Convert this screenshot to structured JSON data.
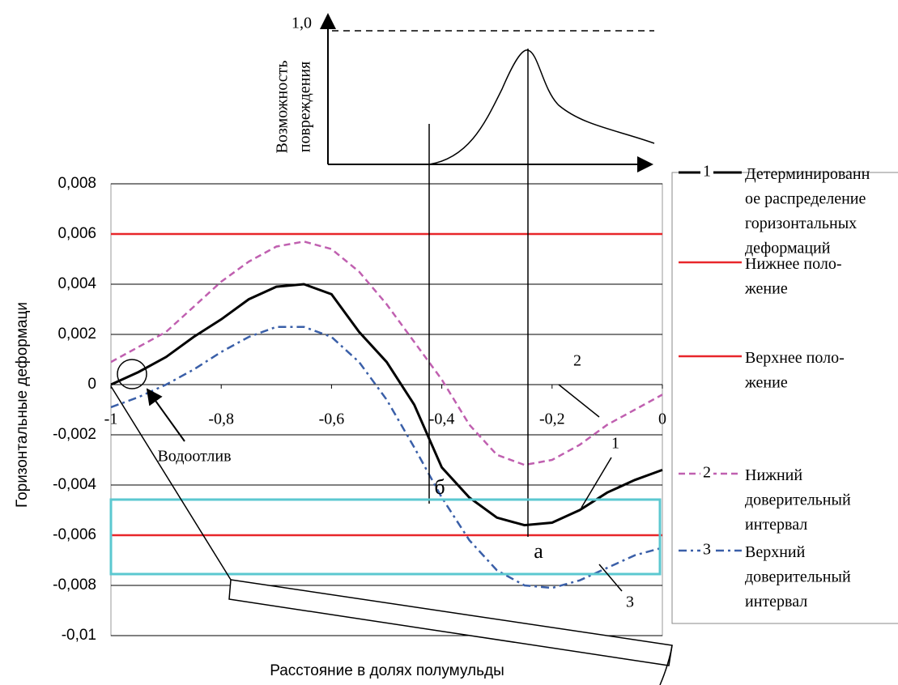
{
  "chart_data": {
    "type": "line",
    "x_label": "Расстояние в долях полумульды",
    "y_label": "Горизонтальные деформаци",
    "x": [
      -1,
      -0.95,
      -0.9,
      -0.85,
      -0.8,
      -0.75,
      -0.7,
      -0.65,
      -0.6,
      -0.55,
      -0.5,
      -0.45,
      -0.4,
      -0.35,
      -0.3,
      -0.25,
      -0.2,
      -0.15,
      -0.1,
      -0.05,
      0
    ],
    "xlim": [
      -1,
      0
    ],
    "xticks": [
      {
        "value": -1,
        "label": "-1"
      },
      {
        "value": -0.8,
        "label": "-0,8"
      },
      {
        "value": -0.6,
        "label": "-0,6"
      },
      {
        "value": -0.4,
        "label": "-0,4"
      },
      {
        "value": -0.2,
        "label": "-0,2"
      },
      0
    ],
    "ylim": [
      -0.01,
      0.008
    ],
    "yticks": [
      {
        "value": -0.01,
        "label": "-0,01"
      },
      {
        "value": -0.008,
        "label": "-0,008"
      },
      {
        "value": -0.006,
        "label": "-0,006"
      },
      {
        "value": -0.004,
        "label": "-0,004"
      },
      {
        "value": -0.002,
        "label": "-0,002"
      },
      0,
      {
        "value": 0.002,
        "label": "0,002"
      },
      {
        "value": 0.004,
        "label": "0,004"
      },
      {
        "value": 0.006,
        "label": "0,006"
      },
      {
        "value": 0.008,
        "label": "0,008"
      }
    ],
    "grid": true,
    "legend": "right",
    "series": [
      {
        "name": "Детерминированн\nое распределение\nгоризонтальных\nдеформаций",
        "marker_label": "1",
        "color": "#000000",
        "dash": "solid",
        "values": [
          0,
          0.0005,
          0.0011,
          0.0019,
          0.0026,
          0.0034,
          0.0039,
          0.004,
          0.0036,
          0.0021,
          0.0009,
          -0.0008,
          -0.0033,
          -0.0045,
          -0.0053,
          -0.0056,
          -0.0055,
          -0.005,
          -0.0043,
          -0.0038,
          -0.0034
        ]
      },
      {
        "name": "Нижнее поло-\nжение",
        "color": "#e8262a",
        "dash": "solid",
        "values": [
          0.006,
          0.006,
          0.006,
          0.006,
          0.006,
          0.006,
          0.006,
          0.006,
          0.006,
          0.006,
          0.006,
          0.006,
          0.006,
          0.006,
          0.006,
          0.006,
          0.006,
          0.006,
          0.006,
          0.006,
          0.006
        ]
      },
      {
        "name": "Верхнее поло-\nжение",
        "color": "#e8262a",
        "dash": "solid",
        "values": [
          -0.006,
          -0.006,
          -0.006,
          -0.006,
          -0.006,
          -0.006,
          -0.006,
          -0.006,
          -0.006,
          -0.006,
          -0.006,
          -0.006,
          -0.006,
          -0.006,
          -0.006,
          -0.006,
          -0.006,
          -0.006,
          -0.006,
          -0.006,
          -0.006
        ]
      },
      {
        "name": "Нижний\nдоверительный\nинтервал",
        "marker_label": "2",
        "color": "#c060b0",
        "dash": "dash",
        "values": [
          0.0009,
          0.0015,
          0.0021,
          0.0031,
          0.0041,
          0.0049,
          0.0055,
          0.0057,
          0.0054,
          0.0045,
          0.0032,
          0.0017,
          0.0002,
          -0.0016,
          -0.0028,
          -0.0032,
          -0.003,
          -0.0024,
          -0.0016,
          -0.001,
          -0.0004
        ]
      },
      {
        "name": "Верхний\nдоверительный\nинтервал",
        "marker_label": "3",
        "color": "#3a5fa8",
        "dash": "dashdot",
        "values": [
          -0.0009,
          -0.0005,
          0,
          0.0006,
          0.0013,
          0.0019,
          0.0023,
          0.0023,
          0.0019,
          0.0009,
          -0.0006,
          -0.0025,
          -0.0045,
          -0.0062,
          -0.0074,
          -0.008,
          -0.0081,
          -0.0078,
          -0.0073,
          -0.0068,
          -0.0065
        ]
      }
    ],
    "annotations": [
      "Водоотлив",
      "а",
      "б",
      "2",
      "1",
      "3"
    ],
    "inset": {
      "y_label": [
        "Возможность",
        "повреждения"
      ],
      "y_tick_label": "1,0"
    }
  }
}
